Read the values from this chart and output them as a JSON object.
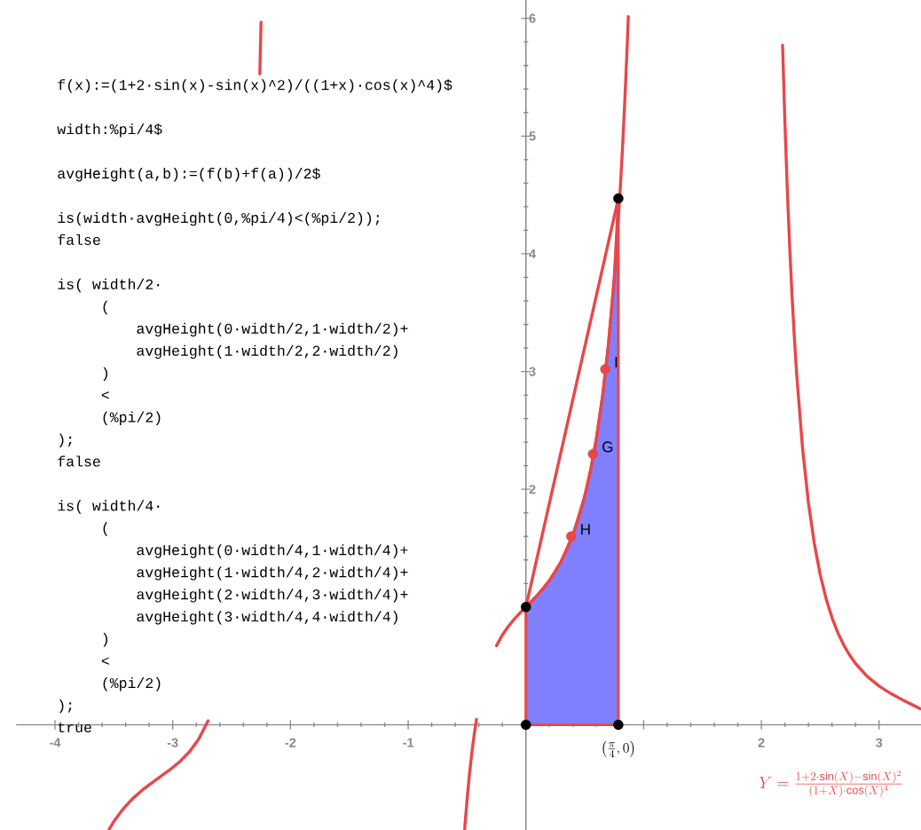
{
  "chart_data": {
    "type": "line",
    "xlim": [
      -4.33,
      3.356
    ],
    "ylim": [
      -0.896,
      6.156
    ],
    "xticks": [
      -4,
      -3,
      -2,
      -1,
      {
        "value": 0,
        "label": null
      },
      {
        "value": 1,
        "label": null
      },
      2,
      3
    ],
    "yticks": [
      {
        "value": 1,
        "label": null
      },
      2,
      3,
      4,
      5,
      6
    ],
    "series": [
      {
        "color": "#e8474a",
        "x": [
          -3.54,
          -3.5,
          -3.42,
          -3.34,
          -3.26,
          -3.18,
          -3.1,
          -3.02,
          -2.94,
          -2.86,
          -2.78,
          -2.7,
          -2.5,
          -2.26,
          -2.25,
          -1.5,
          -0.52,
          -0.5,
          -0.48,
          -0.46,
          -0.44,
          -0.42,
          -0.35,
          -0.25,
          -0.2,
          -0.15,
          -0.1,
          -0.05,
          0,
          0.05,
          0.1,
          0.15,
          0.2,
          0.25,
          0.3,
          0.35,
          0.4,
          0.45,
          0.5,
          0.55,
          0.6,
          0.65,
          0.7,
          0.75,
          0.8,
          0.82,
          0.84,
          0.86,
          0.87,
          1.5,
          2.18,
          2.2,
          2.22,
          2.24,
          2.26,
          2.28,
          2.3,
          2.35,
          2.4,
          2.45,
          2.5,
          2.55,
          2.6,
          2.65,
          2.7,
          2.75,
          2.8,
          2.9,
          3.0,
          3.1,
          3.2,
          3.3,
          3.35,
          1.5,
          0,
          0.785
        ],
        "values": [
          -0.887,
          -0.821,
          -0.713,
          -0.627,
          -0.556,
          -0.495,
          -0.437,
          -0.379,
          -0.313,
          -0.232,
          -0.123,
          0.033,
          null,
          5.528,
          5.968,
          null,
          -0.884,
          -0.636,
          -0.425,
          -0.244,
          -0.089,
          0.045,
          null,
          0.672,
          0.763,
          0.835,
          0.896,
          0.95,
          1,
          1.05,
          1.103,
          1.161,
          1.226,
          1.301,
          1.389,
          1.492,
          1.615,
          1.763,
          1.943,
          2.164,
          2.439,
          2.783,
          3.22,
          3.785,
          4.527,
          4.89,
          5.298,
          5.76,
          6.014,
          null,
          5.771,
          5.115,
          4.554,
          4.071,
          3.654,
          3.292,
          2.976,
          2.346,
          1.885,
          1.539,
          1.275,
          1.071,
          0.91,
          0.781,
          0.676,
          0.591,
          0.52,
          0.41,
          0.329,
          0.265,
          0.211,
          0.161,
          0.136,
          null,
          1,
          4.47
        ]
      },
      {
        "type": "area",
        "color": "#8080ff",
        "x": [
          0,
          0.1,
          0.2,
          0.3,
          0.4,
          0.5,
          0.55,
          0.6,
          0.65,
          0.7,
          0.75,
          0.785
        ],
        "values": [
          1,
          1.103,
          1.226,
          1.389,
          1.615,
          1.943,
          2.164,
          2.439,
          2.783,
          3.22,
          3.785,
          4.47
        ]
      },
      {
        "type": "scatter",
        "marker": "circle",
        "color": "#e8474a",
        "x": [
          0.385,
          0.57,
          0.674
        ],
        "values": [
          1.6,
          2.3,
          3.02
        ]
      },
      {
        "type": "scatter",
        "marker": "circle",
        "color": "#000000",
        "x": [
          0,
          0.785,
          0,
          0.785
        ],
        "values": [
          1,
          4.47,
          0,
          0
        ]
      }
    ],
    "annotations": [
      "f(x):=(1+2·sin(x)-sin(x)^2)/((1+x)·cos(x)^4)$",
      "width:%pi/4$",
      "avgHeight(a,b):=(f(b)+f(a))/2$",
      "is(width·avgHeight(0,%pi/4)<(%pi/2));",
      "false",
      "is( width/2·",
      "    (",
      "        avgHeight(0·width/2,1·width/2)+",
      "        avgHeight(1·width/2,2·width/2)",
      "    )",
      "    <",
      "    (%pi/2)",
      ");",
      "false",
      "is( width/4·",
      "    (",
      "        avgHeight(0·width/4,1·width/4)+",
      "        avgHeight(1·width/4,2·width/4)+",
      "        avgHeight(2·width/4,3·width/4)+",
      "        avgHeight(3·width/4,4·width/4)",
      "    )",
      "    <",
      "    (%pi/2)",
      ");",
      "true",
      "Y=\\frac{1+2\\cdot\\mathrm{sin}(X)-\\mathrm{sin}(X)^{2}}{(1+X)\\cdot\\mathrm{cos}(X)^{4}}",
      {
        "text": "H",
        "x": 0.385,
        "y": 1.6
      },
      {
        "text": "G",
        "x": 0.57,
        "y": 2.3
      },
      {
        "text": "I",
        "x": 0.674,
        "y": 3.02
      },
      {
        "text": "\\left(\\frac{\\pi}{4},0\\right)",
        "x": 0.785,
        "y": 0
      }
    ]
  }
}
